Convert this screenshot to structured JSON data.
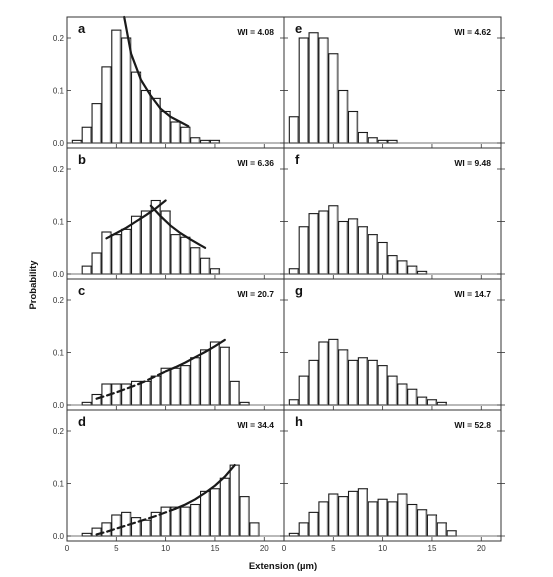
{
  "figure": {
    "ylabel": "Probability",
    "xlabel": "Extension (µm)"
  },
  "chart_data": [
    {
      "type": "bar",
      "label": "a",
      "wi": "WI = 4.08",
      "x": [
        1,
        2,
        3,
        4,
        5,
        6,
        7,
        8,
        9,
        10,
        11,
        12,
        13,
        14,
        15
      ],
      "values": [
        0.005,
        0.03,
        0.075,
        0.145,
        0.215,
        0.2,
        0.135,
        0.1,
        0.085,
        0.06,
        0.04,
        0.03,
        0.01,
        0.005,
        0.005
      ],
      "fits": [
        {
          "style": "solid",
          "x": [
            5.8,
            6.5,
            7.5,
            8.5,
            9.5,
            10.5,
            11.5,
            12.3
          ],
          "y": [
            0.24,
            0.17,
            0.12,
            0.09,
            0.065,
            0.05,
            0.04,
            0.032
          ]
        }
      ],
      "xlim": [
        0,
        22
      ],
      "ylim": [
        0,
        0.24
      ],
      "yticks": [
        0.0,
        0.1,
        0.2
      ]
    },
    {
      "type": "bar",
      "label": "b",
      "wi": "WI = 6.36",
      "x": [
        2,
        3,
        4,
        5,
        6,
        7,
        8,
        9,
        10,
        11,
        12,
        13,
        14,
        15
      ],
      "values": [
        0.015,
        0.04,
        0.08,
        0.075,
        0.085,
        0.11,
        0.12,
        0.14,
        0.12,
        0.075,
        0.07,
        0.05,
        0.03,
        0.01
      ],
      "fits": [
        {
          "style": "solid",
          "x": [
            4,
            5,
            6,
            7,
            8,
            9,
            10
          ],
          "y": [
            0.068,
            0.078,
            0.088,
            0.1,
            0.112,
            0.125,
            0.14
          ]
        },
        {
          "style": "solid",
          "x": [
            8.5,
            9.5,
            10.5,
            11.5,
            12.5,
            13.5,
            14
          ],
          "y": [
            0.13,
            0.11,
            0.092,
            0.078,
            0.066,
            0.055,
            0.05
          ]
        }
      ],
      "xlim": [
        0,
        22
      ],
      "ylim": [
        0,
        0.24
      ],
      "yticks": [
        0.0,
        0.1,
        0.2
      ]
    },
    {
      "type": "bar",
      "label": "c",
      "wi": "WI = 20.7",
      "x": [
        2,
        3,
        4,
        5,
        6,
        7,
        8,
        9,
        10,
        11,
        12,
        13,
        14,
        15,
        16,
        17,
        18
      ],
      "values": [
        0.005,
        0.02,
        0.04,
        0.04,
        0.04,
        0.045,
        0.045,
        0.055,
        0.07,
        0.07,
        0.075,
        0.09,
        0.105,
        0.12,
        0.11,
        0.045,
        0.005
      ],
      "fits": [
        {
          "style": "dashed",
          "x": [
            3,
            4,
            5,
            6,
            7,
            8,
            9,
            10
          ],
          "y": [
            0.012,
            0.018,
            0.024,
            0.031,
            0.038,
            0.046,
            0.055,
            0.064
          ]
        },
        {
          "style": "solid",
          "x": [
            10,
            11,
            12,
            13,
            14,
            15,
            16
          ],
          "y": [
            0.064,
            0.072,
            0.081,
            0.091,
            0.101,
            0.112,
            0.124
          ]
        }
      ],
      "xlim": [
        0,
        22
      ],
      "ylim": [
        0,
        0.24
      ],
      "yticks": [
        0.0,
        0.1,
        0.2
      ]
    },
    {
      "type": "bar",
      "label": "d",
      "wi": "WI = 34.4",
      "x": [
        2,
        3,
        4,
        5,
        6,
        7,
        8,
        9,
        10,
        11,
        12,
        13,
        14,
        15,
        16,
        17,
        18,
        19
      ],
      "values": [
        0.005,
        0.015,
        0.025,
        0.04,
        0.045,
        0.035,
        0.03,
        0.045,
        0.055,
        0.055,
        0.055,
        0.06,
        0.085,
        0.09,
        0.11,
        0.135,
        0.075,
        0.025
      ],
      "fits": [
        {
          "style": "dashed",
          "x": [
            3,
            4,
            5,
            6,
            7,
            8,
            9,
            10,
            11
          ],
          "y": [
            0.003,
            0.008,
            0.014,
            0.02,
            0.026,
            0.032,
            0.038,
            0.045,
            0.052
          ]
        },
        {
          "style": "solid",
          "x": [
            11,
            12,
            13,
            14,
            15,
            16,
            17
          ],
          "y": [
            0.052,
            0.06,
            0.07,
            0.082,
            0.096,
            0.113,
            0.135
          ]
        }
      ],
      "xlim": [
        0,
        22
      ],
      "ylim": [
        0,
        0.24
      ],
      "yticks": [
        0.0,
        0.1,
        0.2
      ]
    },
    {
      "type": "bar",
      "label": "e",
      "wi": "WI = 4.62",
      "x": [
        1,
        2,
        3,
        4,
        5,
        6,
        7,
        8,
        9,
        10,
        11
      ],
      "values": [
        0.05,
        0.2,
        0.21,
        0.2,
        0.17,
        0.1,
        0.06,
        0.02,
        0.01,
        0.005,
        0.005
      ],
      "fits": [],
      "xlim": [
        0,
        22
      ],
      "ylim": [
        0,
        0.24
      ],
      "yticks": [
        0.0,
        0.1,
        0.2
      ]
    },
    {
      "type": "bar",
      "label": "f",
      "wi": "WI = 9.48",
      "x": [
        1,
        2,
        3,
        4,
        5,
        6,
        7,
        8,
        9,
        10,
        11,
        12,
        13,
        14
      ],
      "values": [
        0.01,
        0.09,
        0.115,
        0.12,
        0.13,
        0.1,
        0.105,
        0.09,
        0.075,
        0.06,
        0.035,
        0.025,
        0.015,
        0.005
      ],
      "fits": [],
      "xlim": [
        0,
        22
      ],
      "ylim": [
        0,
        0.24
      ],
      "yticks": [
        0.0,
        0.1,
        0.2
      ]
    },
    {
      "type": "bar",
      "label": "g",
      "wi": "WI = 14.7",
      "x": [
        1,
        2,
        3,
        4,
        5,
        6,
        7,
        8,
        9,
        10,
        11,
        12,
        13,
        14,
        15,
        16
      ],
      "values": [
        0.01,
        0.055,
        0.085,
        0.12,
        0.125,
        0.105,
        0.085,
        0.09,
        0.085,
        0.075,
        0.055,
        0.04,
        0.03,
        0.015,
        0.01,
        0.005
      ],
      "fits": [],
      "xlim": [
        0,
        22
      ],
      "ylim": [
        0,
        0.24
      ],
      "yticks": [
        0.0,
        0.1,
        0.2
      ]
    },
    {
      "type": "bar",
      "label": "h",
      "wi": "WI = 52.8",
      "x": [
        1,
        2,
        3,
        4,
        5,
        6,
        7,
        8,
        9,
        10,
        11,
        12,
        13,
        14,
        15,
        16,
        17
      ],
      "values": [
        0.005,
        0.025,
        0.045,
        0.065,
        0.08,
        0.075,
        0.085,
        0.09,
        0.065,
        0.07,
        0.065,
        0.08,
        0.06,
        0.05,
        0.04,
        0.025,
        0.01
      ],
      "fits": [],
      "xlim": [
        0,
        22
      ],
      "ylim": [
        0,
        0.24
      ],
      "yticks": [
        0.0,
        0.1,
        0.2
      ]
    }
  ]
}
